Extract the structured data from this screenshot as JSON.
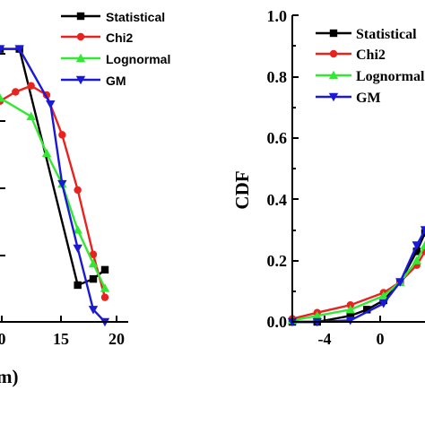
{
  "chart_data": [
    {
      "type": "line",
      "xlabel": "m)",
      "ylabel": "",
      "x_ticks": [
        "0",
        "15",
        "20"
      ],
      "xlim": [
        6,
        21
      ],
      "ylim": [
        0,
        1.0
      ],
      "legend_position": "top-right",
      "series": [
        {
          "name": "Statistical",
          "color": "#000000",
          "marker": "square",
          "x": [
            6,
            8.5,
            16,
            18,
            19.5
          ],
          "y": [
            0.89,
            0.89,
            0.12,
            0.14,
            0.17
          ]
        },
        {
          "name": "Chi2",
          "color": "#e8231f",
          "marker": "circle",
          "x": [
            6,
            8,
            10,
            12,
            14,
            16,
            18,
            19.5
          ],
          "y": [
            0.72,
            0.75,
            0.77,
            0.74,
            0.61,
            0.43,
            0.22,
            0.08
          ]
        },
        {
          "name": "Lognormal",
          "color": "#33e833",
          "marker": "triangle-up",
          "x": [
            6,
            10,
            12,
            14,
            16,
            18,
            19.5
          ],
          "y": [
            0.73,
            0.67,
            0.55,
            0.45,
            0.3,
            0.19,
            0.11
          ]
        },
        {
          "name": "GM",
          "color": "#1a1ad6",
          "marker": "triangle-down",
          "x": [
            6,
            8.5,
            12.5,
            14,
            16,
            18,
            19.5
          ],
          "y": [
            0.89,
            0.89,
            0.71,
            0.45,
            0.24,
            0.04,
            0.0
          ]
        }
      ]
    },
    {
      "type": "line",
      "xlabel": "",
      "ylabel": "CDF",
      "y_ticks": [
        "0.0",
        "0.2",
        "0.4",
        "0.6",
        "0.8",
        "1.0"
      ],
      "x_ticks": [
        "-4",
        "0"
      ],
      "xlim": [
        -5.5,
        2.5
      ],
      "ylim": [
        0,
        1.0
      ],
      "legend_position": "top-right",
      "series": [
        {
          "name": "Statistical",
          "color": "#000000",
          "marker": "square",
          "x": [
            -5.5,
            -4,
            -2,
            -1,
            0,
            1,
            2,
            2.5
          ],
          "y": [
            0.0,
            0.0,
            0.02,
            0.04,
            0.07,
            0.13,
            0.23,
            0.29
          ]
        },
        {
          "name": "Chi2",
          "color": "#e8231f",
          "marker": "circle",
          "x": [
            -5.5,
            -4,
            -2,
            0,
            1,
            2,
            2.5
          ],
          "y": [
            0.01,
            0.03,
            0.055,
            0.095,
            0.13,
            0.185,
            0.23
          ]
        },
        {
          "name": "Lognormal",
          "color": "#33e833",
          "marker": "triangle-up",
          "x": [
            -5.5,
            -4,
            -2,
            0,
            1,
            2,
            2.5
          ],
          "y": [
            0.005,
            0.02,
            0.04,
            0.085,
            0.13,
            0.2,
            0.25
          ]
        },
        {
          "name": "GM",
          "color": "#1a1ad6",
          "marker": "triangle-down",
          "x": [
            -5.5,
            -4,
            -2,
            0,
            1,
            2,
            2.5
          ],
          "y": [
            0.0,
            0.0,
            0.005,
            0.06,
            0.13,
            0.25,
            0.3
          ]
        }
      ]
    }
  ]
}
